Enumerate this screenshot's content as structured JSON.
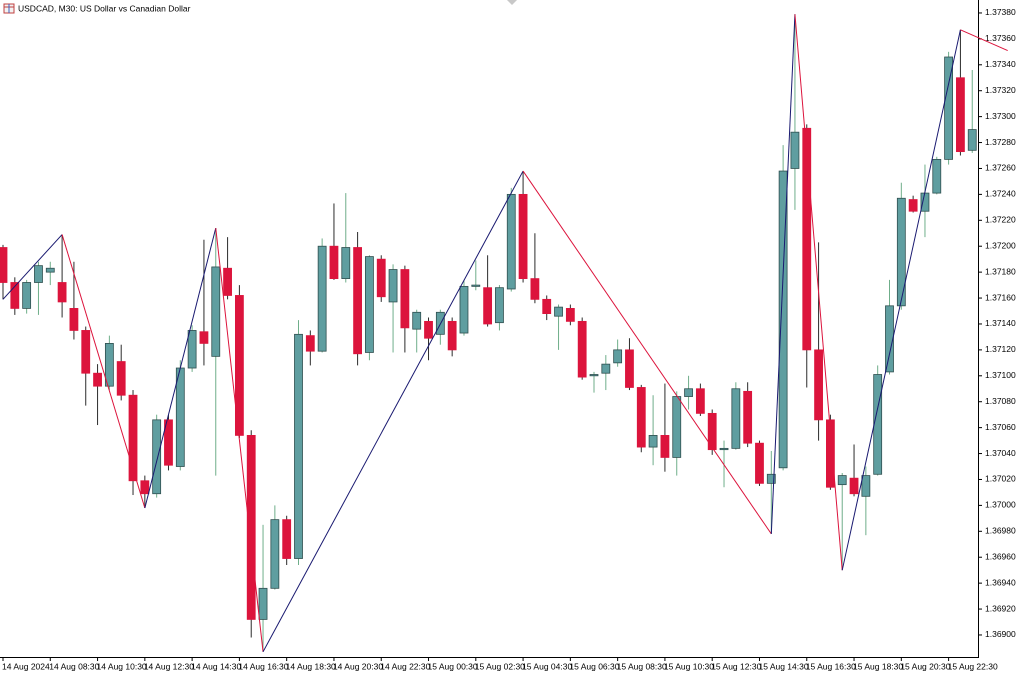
{
  "chart_data": {
    "type": "candlestick",
    "title": "USDCAD, M30:  US Dollar vs Canadian Dollar",
    "categories": [
      "14 Aug 2024",
      null,
      null,
      null,
      "14 Aug 08:30",
      null,
      null,
      null,
      "14 Aug 10:30",
      null,
      null,
      null,
      "14 Aug 12:30",
      null,
      null,
      null,
      "14 Aug 14:30",
      null,
      null,
      null,
      "14 Aug 16:30",
      null,
      null,
      null,
      "14 Aug 18:30",
      null,
      null,
      null,
      "14 Aug 20:30",
      null,
      null,
      null,
      "14 Aug 22:30",
      null,
      null,
      null,
      "15 Aug 00:30",
      null,
      null,
      null,
      "15 Aug 02:30",
      null,
      null,
      null,
      "15 Aug 04:30",
      null,
      null,
      null,
      "15 Aug 06:30",
      null,
      null,
      null,
      "15 Aug 08:30",
      null,
      null,
      null,
      "15 Aug 10:30",
      null,
      null,
      null,
      "15 Aug 12:30",
      null,
      null,
      null,
      "15 Aug 14:30",
      null,
      null,
      null,
      "15 Aug 16:30",
      null,
      null,
      null,
      "15 Aug 18:30",
      null,
      null,
      null,
      "15 Aug 20:30",
      null,
      null,
      null,
      "15 Aug 22:30",
      null,
      null
    ],
    "open": [
      1.37199,
      1.37172,
      1.37152,
      1.37172,
      1.3718,
      1.37172,
      1.37152,
      1.37135,
      1.37102,
      1.37092,
      1.37111,
      1.37085,
      1.37019,
      1.37009,
      1.37066,
      1.3703,
      1.37106,
      1.37134,
      1.37115,
      1.37183,
      1.37162,
      1.37054,
      1.36912,
      1.36936,
      1.36989,
      1.36959,
      1.37131,
      1.37119,
      1.372,
      1.37175,
      1.37199,
      1.37118,
      1.3719,
      1.37157,
      1.37182,
      1.37136,
      1.37142,
      1.37132,
      1.37142,
      1.37133,
      1.37169,
      1.37168,
      1.37141,
      1.37167,
      1.3724,
      1.37175,
      1.37159,
      1.37146,
      1.37152,
      1.37142,
      1.371,
      1.37102,
      1.3711,
      1.3712,
      1.37091,
      1.37045,
      1.37054,
      1.37037,
      1.37084,
      1.3709,
      1.37071,
      1.37043,
      1.37044,
      1.37088,
      1.37048,
      1.37017,
      1.37029,
      1.3726,
      1.37291,
      1.3712,
      1.37066,
      1.37016,
      1.37021,
      1.37007,
      1.37024,
      1.37103,
      1.37154,
      1.37236,
      1.37227,
      1.37241,
      1.37267,
      1.3733,
      1.37274
    ],
    "high": [
      1.37201,
      1.37176,
      1.37174,
      1.37188,
      1.37188,
      1.37209,
      1.37188,
      1.37138,
      1.37109,
      1.37131,
      1.37124,
      1.37089,
      1.37023,
      1.3707,
      1.3707,
      1.37112,
      1.37139,
      1.37205,
      1.37214,
      1.37207,
      1.3717,
      1.37058,
      1.36985,
      1.37,
      1.36992,
      1.37143,
      1.37135,
      1.37206,
      1.37233,
      1.37241,
      1.37211,
      1.37193,
      1.37193,
      1.37186,
      1.37185,
      1.37151,
      1.37145,
      1.37151,
      1.37145,
      1.37174,
      1.37189,
      1.37193,
      1.3717,
      1.37245,
      1.37258,
      1.3721,
      1.37162,
      1.37155,
      1.37155,
      1.37145,
      1.37103,
      1.37116,
      1.37128,
      1.37129,
      1.37093,
      1.37085,
      1.37094,
      1.37088,
      1.371,
      1.37094,
      1.37074,
      1.3705,
      1.37095,
      1.37095,
      1.3705,
      1.37042,
      1.37278,
      1.37379,
      1.37294,
      1.37203,
      1.3707,
      1.37025,
      1.37047,
      1.3703,
      1.37108,
      1.37174,
      1.37249,
      1.37239,
      1.37263,
      1.37269,
      1.3735,
      1.37367,
      1.37336
    ],
    "low": [
      1.37159,
      1.37147,
      1.37148,
      1.37147,
      1.3717,
      1.37145,
      1.37128,
      1.37077,
      1.37062,
      1.37089,
      1.37081,
      1.37008,
      1.36998,
      1.37006,
      1.37027,
      1.37027,
      1.37103,
      1.37108,
      1.37023,
      1.37159,
      1.37052,
      1.36898,
      1.36887,
      1.36935,
      1.36954,
      1.36954,
      1.37108,
      1.37118,
      1.37174,
      1.37172,
      1.37108,
      1.37112,
      1.37157,
      1.37118,
      1.37118,
      1.37118,
      1.37112,
      1.37124,
      1.37115,
      1.37131,
      1.37166,
      1.37138,
      1.37135,
      1.37165,
      1.37172,
      1.37156,
      1.37143,
      1.3712,
      1.37139,
      1.37097,
      1.37087,
      1.37089,
      1.37107,
      1.37089,
      1.37041,
      1.37031,
      1.37026,
      1.37023,
      1.37074,
      1.37069,
      1.37039,
      1.37014,
      1.37043,
      1.37045,
      1.37015,
      1.36978,
      1.37027,
      1.37228,
      1.37091,
      1.3705,
      1.37012,
      1.3695,
      1.37007,
      1.36977,
      1.37023,
      1.37101,
      1.37151,
      1.37226,
      1.37207,
      1.3724,
      1.37263,
      1.3727,
      1.37272
    ],
    "close": [
      1.37172,
      1.37152,
      1.37172,
      1.37185,
      1.37183,
      1.37157,
      1.37135,
      1.37102,
      1.37092,
      1.37125,
      1.37085,
      1.37019,
      1.37009,
      1.37066,
      1.37031,
      1.37106,
      1.37135,
      1.37125,
      1.37184,
      1.37162,
      1.37054,
      1.36912,
      1.36936,
      1.36989,
      1.36959,
      1.37132,
      1.37119,
      1.372,
      1.37175,
      1.37199,
      1.37117,
      1.37192,
      1.37161,
      1.37182,
      1.37137,
      1.37149,
      1.37129,
      1.37149,
      1.3712,
      1.37169,
      1.3717,
      1.3714,
      1.37168,
      1.3724,
      1.37175,
      1.37159,
      1.37148,
      1.37153,
      1.37142,
      1.37099,
      1.37101,
      1.37109,
      1.3712,
      1.37091,
      1.37045,
      1.37054,
      1.37037,
      1.37084,
      1.3709,
      1.37071,
      1.37043,
      1.37044,
      1.3709,
      1.37048,
      1.37017,
      1.37024,
      1.37258,
      1.37288,
      1.3712,
      1.37066,
      1.37014,
      1.37023,
      1.37009,
      1.37023,
      1.37101,
      1.37154,
      1.37237,
      1.37227,
      1.37241,
      1.37267,
      1.37346,
      1.37273,
      1.3729
    ],
    "up_color": "#5f9ea0",
    "down_color": "#dc143c",
    "zigzag": {
      "x": [
        0,
        5,
        12,
        18,
        22,
        44,
        65,
        67,
        71,
        81,
        85
      ],
      "values": [
        1.37159,
        1.37209,
        1.36998,
        1.37214,
        1.36887,
        1.37258,
        1.36978,
        1.37379,
        1.3695,
        1.37367,
        1.37351
      ],
      "up_color": "#191970",
      "down_color": "#dc143c"
    },
    "ylim": [
      1.36883,
      1.3739
    ],
    "yticks": [
      {
        "value": 1.369,
        "label": "1.36900"
      },
      {
        "value": 1.3692,
        "label": "1.36920"
      },
      {
        "value": 1.3694,
        "label": "1.36940"
      },
      {
        "value": 1.3696,
        "label": "1.36960"
      },
      {
        "value": 1.3698,
        "label": "1.36980"
      },
      {
        "value": 1.37,
        "label": "1.37000"
      },
      {
        "value": 1.3702,
        "label": "1.37020"
      },
      {
        "value": 1.3704,
        "label": "1.37040"
      },
      {
        "value": 1.3706,
        "label": "1.37060"
      },
      {
        "value": 1.3708,
        "label": "1.37080"
      },
      {
        "value": 1.371,
        "label": "1.37100"
      },
      {
        "value": 1.3712,
        "label": "1.37120"
      },
      {
        "value": 1.3714,
        "label": "1.37140"
      },
      {
        "value": 1.3716,
        "label": "1.37160"
      },
      {
        "value": 1.3718,
        "label": "1.37180"
      },
      {
        "value": 1.372,
        "label": "1.37200"
      },
      {
        "value": 1.3722,
        "label": "1.37220"
      },
      {
        "value": 1.3724,
        "label": "1.37240"
      },
      {
        "value": 1.3726,
        "label": "1.37260"
      },
      {
        "value": 1.3728,
        "label": "1.37280"
      },
      {
        "value": 1.373,
        "label": "1.37300"
      },
      {
        "value": 1.3732,
        "label": "1.37320"
      },
      {
        "value": 1.3734,
        "label": "1.37340"
      },
      {
        "value": 1.3736,
        "label": "1.37360"
      },
      {
        "value": 1.3738,
        "label": "1.37380"
      }
    ],
    "grid": false
  }
}
